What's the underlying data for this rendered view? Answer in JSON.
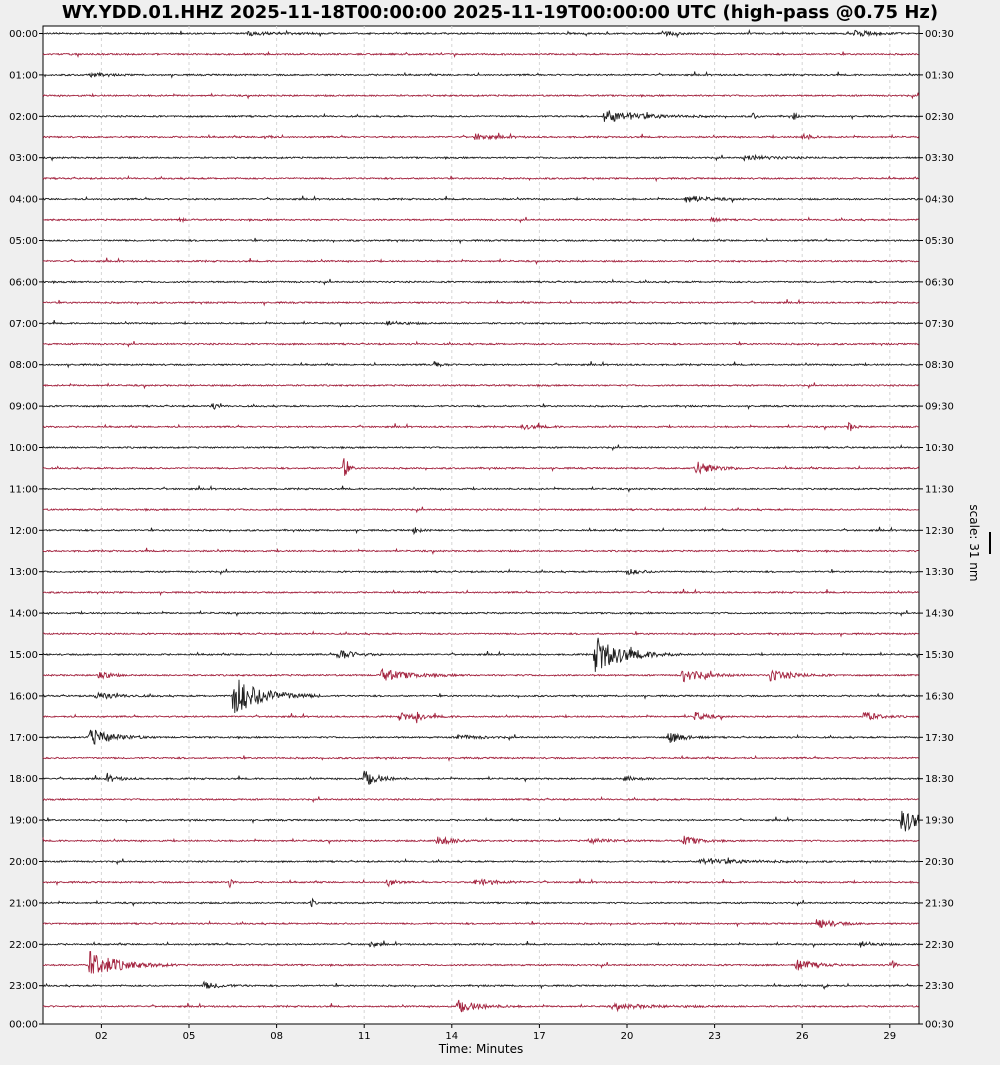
{
  "title": "WY.YDD.01.HHZ 2025-11-18T00:00:00 2025-11-19T00:00:00 UTC (high-pass @0.75 Hz)",
  "chart_data": {
    "type": "line",
    "title": "WY.YDD.01.HHZ 2025-11-18T00:00:00 2025-11-19T00:00:00 UTC (high-pass @0.75 Hz)",
    "xlabel": "Time: Minutes",
    "xlim": [
      0,
      30
    ],
    "x_ticks": [
      {
        "value": 2,
        "label": "02"
      },
      {
        "value": 5,
        "label": "05"
      },
      {
        "value": 8,
        "label": "08"
      },
      {
        "value": 11,
        "label": "11"
      },
      {
        "value": 14,
        "label": "14"
      },
      {
        "value": 17,
        "label": "17"
      },
      {
        "value": 20,
        "label": "20"
      },
      {
        "value": 23,
        "label": "23"
      },
      {
        "value": 26,
        "label": "26"
      },
      {
        "value": 29,
        "label": "29"
      }
    ],
    "left_labels": [
      "00:00",
      "01:00",
      "02:00",
      "03:00",
      "04:00",
      "05:00",
      "06:00",
      "07:00",
      "08:00",
      "09:00",
      "10:00",
      "11:00",
      "12:00",
      "13:00",
      "14:00",
      "15:00",
      "16:00",
      "17:00",
      "18:00",
      "19:00",
      "20:00",
      "21:00",
      "22:00",
      "23:00",
      "00:00"
    ],
    "right_labels": [
      "00:30",
      "01:30",
      "02:30",
      "03:30",
      "04:30",
      "05:30",
      "06:30",
      "07:30",
      "08:30",
      "09:30",
      "10:30",
      "11:30",
      "12:30",
      "13:30",
      "14:30",
      "15:30",
      "16:30",
      "17:30",
      "18:30",
      "19:30",
      "20:30",
      "21:30",
      "22:30",
      "23:30",
      "00:30"
    ],
    "trace_count": 48,
    "trace_colors": [
      "#1e1e1e",
      "#a3233f"
    ],
    "grid": true,
    "scale_label": "scale: 31 nm",
    "events": [
      {
        "trace": 0,
        "t": 21.2,
        "amp": 0.25,
        "dur": 0.8
      },
      {
        "trace": 0,
        "t": 27.8,
        "amp": 0.35,
        "dur": 1.2
      },
      {
        "trace": 0,
        "t": 7.0,
        "amp": 0.15,
        "dur": 2.0
      },
      {
        "trace": 2,
        "t": 1.6,
        "amp": 0.2,
        "dur": 1.0
      },
      {
        "trace": 4,
        "t": 19.2,
        "amp": 0.55,
        "dur": 2.5
      },
      {
        "trace": 4,
        "t": 24.3,
        "amp": 0.4,
        "dur": 0.2
      },
      {
        "trace": 4,
        "t": 25.7,
        "amp": 0.4,
        "dur": 0.2
      },
      {
        "trace": 5,
        "t": 7.6,
        "amp": 0.35,
        "dur": 0.3
      },
      {
        "trace": 5,
        "t": 14.8,
        "amp": 0.3,
        "dur": 1.2
      },
      {
        "trace": 5,
        "t": 26.0,
        "amp": 0.4,
        "dur": 0.5
      },
      {
        "trace": 6,
        "t": 24.0,
        "amp": 0.2,
        "dur": 2.0
      },
      {
        "trace": 8,
        "t": 22.0,
        "amp": 0.3,
        "dur": 1.5
      },
      {
        "trace": 9,
        "t": 4.7,
        "amp": 0.3,
        "dur": 0.2
      },
      {
        "trace": 9,
        "t": 22.9,
        "amp": 0.2,
        "dur": 0.5
      },
      {
        "trace": 14,
        "t": 11.8,
        "amp": 0.2,
        "dur": 1.0
      },
      {
        "trace": 16,
        "t": 13.4,
        "amp": 0.3,
        "dur": 0.5
      },
      {
        "trace": 18,
        "t": 5.8,
        "amp": 0.3,
        "dur": 0.4
      },
      {
        "trace": 19,
        "t": 16.4,
        "amp": 0.2,
        "dur": 1.2
      },
      {
        "trace": 19,
        "t": 27.6,
        "amp": 0.55,
        "dur": 0.3
      },
      {
        "trace": 21,
        "t": 10.3,
        "amp": 1.0,
        "dur": 0.3
      },
      {
        "trace": 21,
        "t": 22.3,
        "amp": 0.7,
        "dur": 1.2
      },
      {
        "trace": 24,
        "t": 12.7,
        "amp": 0.3,
        "dur": 0.4
      },
      {
        "trace": 26,
        "t": 20.0,
        "amp": 0.25,
        "dur": 1.0
      },
      {
        "trace": 30,
        "t": 10.1,
        "amp": 0.55,
        "dur": 1.0
      },
      {
        "trace": 30,
        "t": 18.9,
        "amp": 1.6,
        "dur": 2.0
      },
      {
        "trace": 31,
        "t": 1.9,
        "amp": 0.6,
        "dur": 0.6
      },
      {
        "trace": 31,
        "t": 11.6,
        "amp": 0.5,
        "dur": 2.0
      },
      {
        "trace": 31,
        "t": 21.9,
        "amp": 0.6,
        "dur": 1.5
      },
      {
        "trace": 31,
        "t": 24.9,
        "amp": 0.5,
        "dur": 1.5
      },
      {
        "trace": 32,
        "t": 1.8,
        "amp": 0.3,
        "dur": 1.5
      },
      {
        "trace": 32,
        "t": 6.5,
        "amp": 1.8,
        "dur": 2.0
      },
      {
        "trace": 33,
        "t": 12.2,
        "amp": 0.3,
        "dur": 1.5
      },
      {
        "trace": 33,
        "t": 12.8,
        "amp": 0.6,
        "dur": 0.2
      },
      {
        "trace": 33,
        "t": 22.3,
        "amp": 0.4,
        "dur": 0.8
      },
      {
        "trace": 33,
        "t": 28.1,
        "amp": 0.45,
        "dur": 1.0
      },
      {
        "trace": 34,
        "t": 1.6,
        "amp": 0.8,
        "dur": 1.5
      },
      {
        "trace": 34,
        "t": 21.4,
        "amp": 0.55,
        "dur": 1.0
      },
      {
        "trace": 34,
        "t": 14.2,
        "amp": 0.2,
        "dur": 1.5
      },
      {
        "trace": 36,
        "t": 2.2,
        "amp": 0.3,
        "dur": 0.8
      },
      {
        "trace": 36,
        "t": 11.0,
        "amp": 0.7,
        "dur": 1.0
      },
      {
        "trace": 36,
        "t": 19.9,
        "amp": 0.2,
        "dur": 1.0
      },
      {
        "trace": 38,
        "t": 29.4,
        "amp": 1.2,
        "dur": 1.3
      },
      {
        "trace": 39,
        "t": 13.5,
        "amp": 0.5,
        "dur": 1.0
      },
      {
        "trace": 39,
        "t": 21.9,
        "amp": 0.45,
        "dur": 1.0
      },
      {
        "trace": 39,
        "t": 18.7,
        "amp": 0.2,
        "dur": 1.5
      },
      {
        "trace": 40,
        "t": 22.5,
        "amp": 0.25,
        "dur": 3.0
      },
      {
        "trace": 41,
        "t": 6.4,
        "amp": 0.5,
        "dur": 0.15
      },
      {
        "trace": 41,
        "t": 11.8,
        "amp": 0.4,
        "dur": 0.5
      },
      {
        "trace": 41,
        "t": 14.8,
        "amp": 0.3,
        "dur": 1.5
      },
      {
        "trace": 42,
        "t": 9.2,
        "amp": 0.5,
        "dur": 0.15
      },
      {
        "trace": 43,
        "t": 26.5,
        "amp": 0.45,
        "dur": 1.2
      },
      {
        "trace": 44,
        "t": 11.2,
        "amp": 0.35,
        "dur": 0.4
      },
      {
        "trace": 44,
        "t": 28.0,
        "amp": 0.3,
        "dur": 0.8
      },
      {
        "trace": 45,
        "t": 1.6,
        "amp": 1.2,
        "dur": 2.0
      },
      {
        "trace": 45,
        "t": 25.8,
        "amp": 0.5,
        "dur": 1.2
      },
      {
        "trace": 45,
        "t": 29.1,
        "amp": 0.7,
        "dur": 0.15
      },
      {
        "trace": 46,
        "t": 5.5,
        "amp": 0.3,
        "dur": 1.2
      },
      {
        "trace": 46,
        "t": 26.7,
        "amp": 0.4,
        "dur": 0.2
      },
      {
        "trace": 47,
        "t": 14.2,
        "amp": 0.55,
        "dur": 1.5
      },
      {
        "trace": 47,
        "t": 19.5,
        "amp": 0.2,
        "dur": 3.0
      }
    ]
  }
}
